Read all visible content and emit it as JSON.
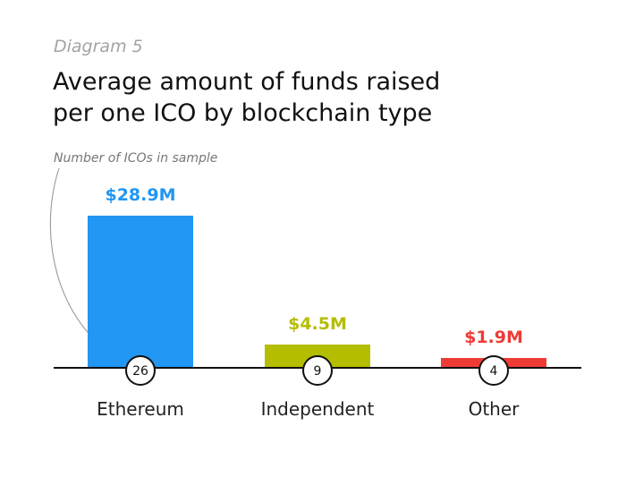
{
  "header": {
    "diagram_label": "Diagram 5",
    "title_line1": "Average amount of funds raised",
    "title_line2": "per one ICO by blockchain type"
  },
  "chart_data": {
    "type": "bar",
    "title": "Average amount of funds raised per one ICO by blockchain type",
    "xlabel": "",
    "ylabel": "",
    "ylim": [
      0,
      28.9
    ],
    "grid": false,
    "categories": [
      "Ethereum",
      "Independent",
      "Other"
    ],
    "values": [
      28.9,
      4.5,
      1.9
    ],
    "value_labels": [
      "$28.9M",
      "$4.5M",
      "$1.9M"
    ],
    "sample_counts": [
      "26",
      "9",
      "4"
    ],
    "colors": [
      "#2196f3",
      "#b5bd00",
      "#ef3b36"
    ],
    "annotation": "Number of ICOs in sample"
  }
}
